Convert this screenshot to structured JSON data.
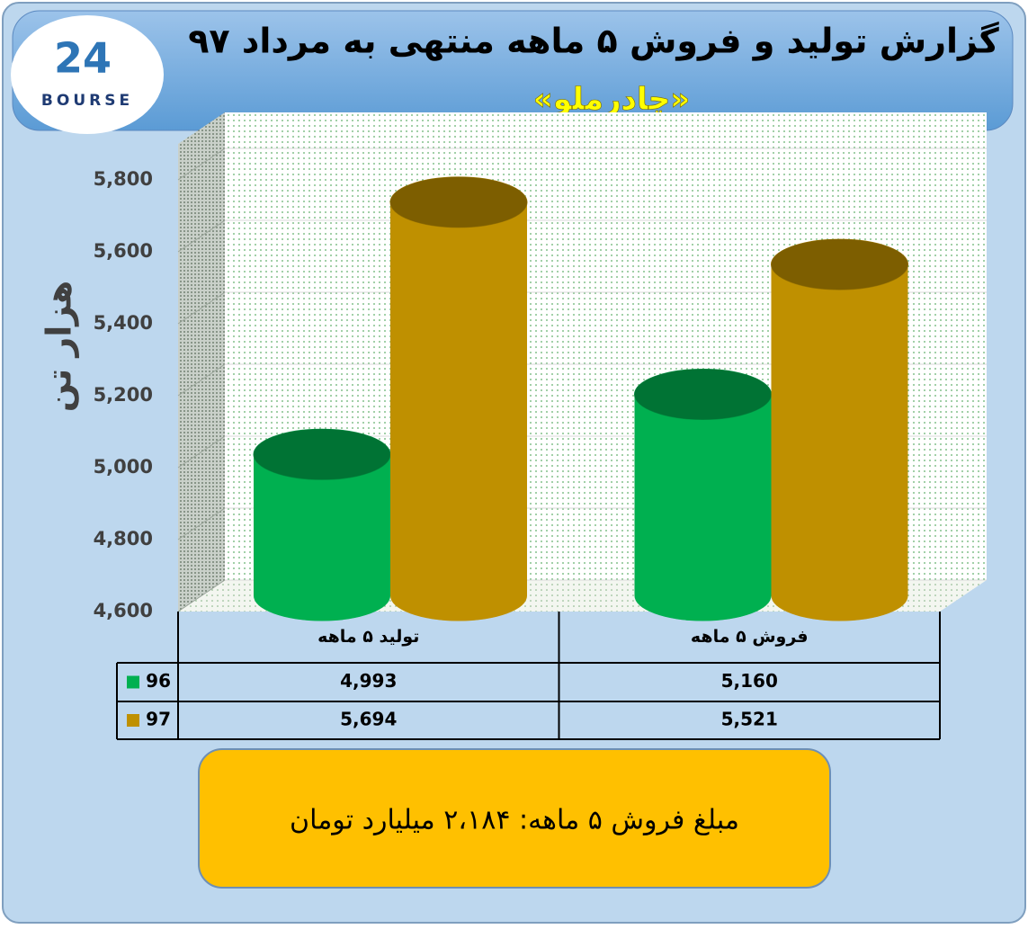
{
  "chart_data": {
    "type": "cylinder-bar",
    "title": "گزارش تولید و فروش ۵ ماهه منتهی به مرداد ۹۷",
    "subtitle": "«چادرملو»",
    "logo": {
      "mark": "24",
      "name": "BOURSE"
    },
    "y_label": "هزار تن",
    "categories": [
      "تولید ۵ ماهه",
      "فروش ۵ ماهه"
    ],
    "series": [
      {
        "name": "96",
        "color": "#00b050",
        "values": [
          4993,
          5160
        ],
        "value_labels": [
          "4,993",
          "5,160"
        ]
      },
      {
        "name": "97",
        "color": "#bf9000",
        "values": [
          5694,
          5521
        ],
        "value_labels": [
          "5,694",
          "5,521"
        ]
      }
    ],
    "ylim": [
      4600,
      5900
    ],
    "yticks": [
      {
        "value": 4600,
        "label": "4,600"
      },
      {
        "value": 4800,
        "label": "4,800"
      },
      {
        "value": 5000,
        "label": "5,000"
      },
      {
        "value": 5200,
        "label": "5,200"
      },
      {
        "value": 5400,
        "label": "5,400"
      },
      {
        "value": 5600,
        "label": "5,600"
      },
      {
        "value": 5800,
        "label": "5,800"
      }
    ],
    "grid": true,
    "annotation": "مبلغ فروش ۵ ماهه: ۲،۱۸۴ میلیارد تومان"
  }
}
